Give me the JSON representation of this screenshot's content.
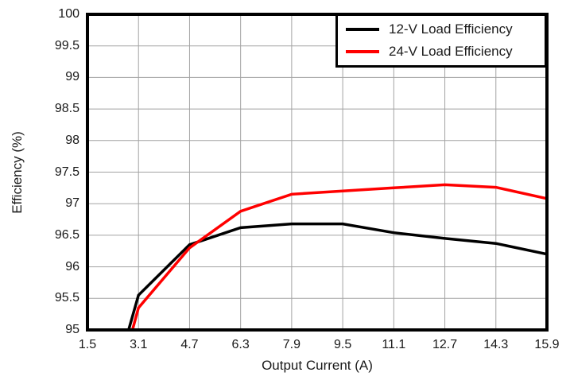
{
  "chart_data": {
    "type": "line",
    "title": "",
    "xlabel": "Output Current (A)",
    "ylabel": "Efficiency (%)",
    "xlim": [
      1.5,
      15.9
    ],
    "ylim": [
      95,
      100
    ],
    "x_ticks": [
      1.5,
      3.1,
      4.7,
      6.3,
      7.9,
      9.5,
      11.1,
      12.7,
      14.3,
      15.9
    ],
    "x_tick_labels": [
      "1.5",
      "3.1",
      "4.7",
      "6.3",
      "7.9",
      "9.5",
      "11.1",
      "12.7",
      "14.3",
      "15.9"
    ],
    "y_ticks": [
      95,
      95.5,
      96,
      96.5,
      97,
      97.5,
      98,
      98.5,
      99,
      99.5,
      100
    ],
    "y_tick_labels": [
      "95",
      "95.5",
      "96",
      "96.5",
      "97",
      "97.5",
      "98",
      "98.5",
      "99",
      "99.5",
      "100"
    ],
    "grid": true,
    "legend_position": "top-right",
    "series": [
      {
        "name": "12-V Load Efficiency",
        "color": "#000000",
        "x": [
          2.79,
          3.1,
          4.7,
          6.3,
          7.9,
          9.5,
          11.1,
          12.7,
          14.3,
          15.9
        ],
        "y": [
          95.0,
          95.55,
          96.35,
          96.62,
          96.68,
          96.68,
          96.54,
          96.45,
          96.37,
          96.2
        ]
      },
      {
        "name": "24-V Load Efficiency",
        "color": "#ff0000",
        "x": [
          2.91,
          3.1,
          4.7,
          6.3,
          7.9,
          9.5,
          11.1,
          12.7,
          14.3,
          15.9
        ],
        "y": [
          95.0,
          95.35,
          96.3,
          96.88,
          97.15,
          97.2,
          97.25,
          97.3,
          97.26,
          97.08
        ]
      }
    ]
  },
  "colors": {
    "background": "#ffffff",
    "grid": "#a3a3a3",
    "axis": "#000000",
    "text": "#1a1a1a"
  }
}
